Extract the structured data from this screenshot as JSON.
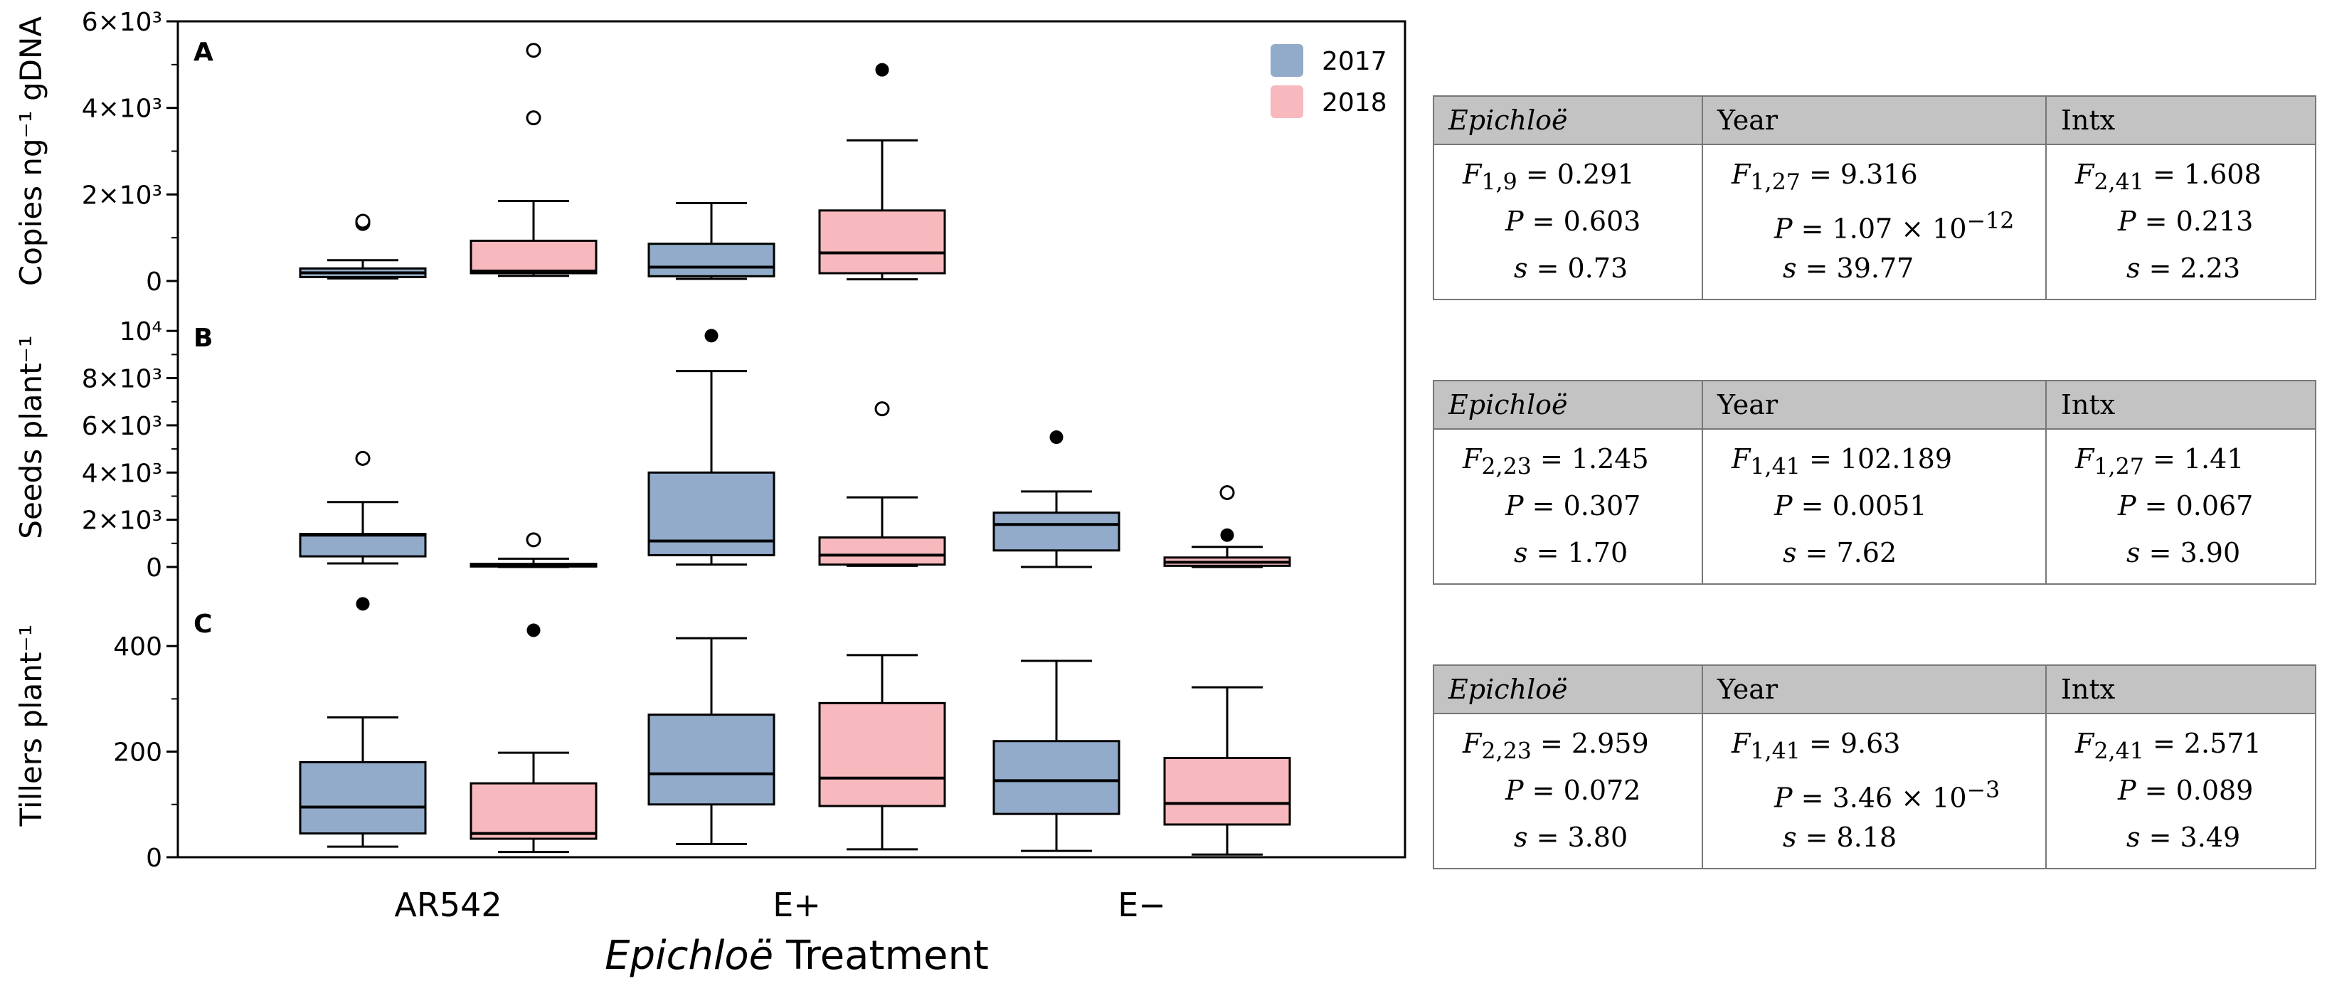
{
  "chart_data": {
    "type": "boxplot",
    "xlabel_italic": "Epichloë",
    "xlabel_rest": " Treatment",
    "categories": [
      "AR542",
      "E+",
      "E−"
    ],
    "legend": [
      {
        "name": "2017",
        "color": "#93abca"
      },
      {
        "name": "2018",
        "color": "#f7b9bd"
      }
    ],
    "panels": [
      {
        "letter": "A",
        "ylabel": "Copies ng⁻¹ gDNA",
        "ylim": [
          0,
          6000
        ],
        "ticks": [
          {
            "v": 0,
            "l": "0"
          },
          {
            "v": 2000,
            "l": "2×10³"
          },
          {
            "v": 4000,
            "l": "4×10³"
          },
          {
            "v": 6000,
            "l": "6×10³"
          }
        ],
        "boxes": [
          {
            "category": "AR542",
            "year": "2017",
            "whisker_low": 60,
            "q1": 90,
            "median": 190,
            "q3": 290,
            "whisker_high": 480,
            "outliers": [
              {
                "v": 1330,
                "filled": false
              },
              {
                "v": 1380,
                "filled": false
              }
            ]
          },
          {
            "category": "AR542",
            "year": "2018",
            "whisker_low": 120,
            "q1": 180,
            "median": 230,
            "q3": 930,
            "whisker_high": 1850,
            "outliers": [
              {
                "v": 3770,
                "filled": false
              },
              {
                "v": 5330,
                "filled": false
              }
            ]
          },
          {
            "category": "E+",
            "year": "2017",
            "whisker_low": 50,
            "q1": 110,
            "median": 320,
            "q3": 860,
            "whisker_high": 1800,
            "outliers": []
          },
          {
            "category": "E+",
            "year": "2018",
            "whisker_low": 40,
            "q1": 180,
            "median": 650,
            "q3": 1630,
            "whisker_high": 3250,
            "outliers": [
              {
                "v": 4880,
                "filled": true
              }
            ]
          }
        ]
      },
      {
        "letter": "B",
        "ylabel": "Seeds plant⁻¹",
        "ylim": [
          0,
          11000
        ],
        "ticks": [
          {
            "v": 0,
            "l": "0"
          },
          {
            "v": 2000,
            "l": "2×10³"
          },
          {
            "v": 4000,
            "l": "4×10³"
          },
          {
            "v": 6000,
            "l": "6×10³"
          },
          {
            "v": 8000,
            "l": "8×10³"
          },
          {
            "v": 10000,
            "l": "10⁴"
          }
        ],
        "boxes": [
          {
            "category": "AR542",
            "year": "2017",
            "whisker_low": 150,
            "q1": 450,
            "median": 1350,
            "q3": 1400,
            "whisker_high": 2750,
            "outliers": [
              {
                "v": 4600,
                "filled": false
              }
            ]
          },
          {
            "category": "AR542",
            "year": "2018",
            "whisker_low": 0,
            "q1": 20,
            "median": 80,
            "q3": 130,
            "whisker_high": 350,
            "outliers": [
              {
                "v": 1150,
                "filled": false
              }
            ]
          },
          {
            "category": "E+",
            "year": "2017",
            "whisker_low": 100,
            "q1": 500,
            "median": 1100,
            "q3": 4000,
            "whisker_high": 8300,
            "outliers": [
              {
                "v": 9800,
                "filled": true
              }
            ]
          },
          {
            "category": "E+",
            "year": "2018",
            "whisker_low": 50,
            "q1": 100,
            "median": 500,
            "q3": 1250,
            "whisker_high": 2950,
            "outliers": [
              {
                "v": 6700,
                "filled": false
              }
            ]
          },
          {
            "category": "E−",
            "year": "2017",
            "whisker_low": 0,
            "q1": 700,
            "median": 1800,
            "q3": 2300,
            "whisker_high": 3200,
            "outliers": [
              {
                "v": 5500,
                "filled": true
              }
            ]
          },
          {
            "category": "E−",
            "year": "2018",
            "whisker_low": 0,
            "q1": 50,
            "median": 200,
            "q3": 400,
            "whisker_high": 850,
            "outliers": [
              {
                "v": 1350,
                "filled": true
              },
              {
                "v": 3150,
                "filled": false
              }
            ]
          }
        ]
      },
      {
        "letter": "C",
        "ylabel": "Tillers plant⁻¹",
        "ylim": [
          0,
          500
        ],
        "ticks": [
          {
            "v": 0,
            "l": "0"
          },
          {
            "v": 200,
            "l": "200"
          },
          {
            "v": 400,
            "l": "400"
          }
        ],
        "boxes": [
          {
            "category": "AR542",
            "year": "2017",
            "whisker_low": 20,
            "q1": 45,
            "median": 95,
            "q3": 180,
            "whisker_high": 265,
            "outliers": [
              {
                "v": 480,
                "filled": true
              }
            ]
          },
          {
            "category": "AR542",
            "year": "2018",
            "whisker_low": 10,
            "q1": 35,
            "median": 45,
            "q3": 140,
            "whisker_high": 198,
            "outliers": [
              {
                "v": 430,
                "filled": true
              }
            ]
          },
          {
            "category": "E+",
            "year": "2017",
            "whisker_low": 25,
            "q1": 100,
            "median": 158,
            "q3": 270,
            "whisker_high": 415,
            "outliers": []
          },
          {
            "category": "E+",
            "year": "2018",
            "whisker_low": 15,
            "q1": 97,
            "median": 150,
            "q3": 292,
            "whisker_high": 383,
            "outliers": []
          },
          {
            "category": "E−",
            "year": "2017",
            "whisker_low": 12,
            "q1": 82,
            "median": 145,
            "q3": 220,
            "whisker_high": 372,
            "outliers": []
          },
          {
            "category": "E−",
            "year": "2018",
            "whisker_low": 5,
            "q1": 62,
            "median": 102,
            "q3": 188,
            "whisker_high": 322,
            "outliers": []
          }
        ]
      }
    ]
  },
  "tables": [
    {
      "headers": {
        "epichloe": "Epichloë",
        "year": "Year",
        "intx": "Intx"
      },
      "epichloe": {
        "F": "F",
        "sub": "1,9",
        "F_val": " = 0.291",
        "P": "P",
        "P_val": " = 0.603",
        "s": "s",
        "s_val": " = 0.73"
      },
      "year": {
        "F": "F",
        "sub": "1,27",
        "F_val": " = 9.316",
        "P": "P",
        "P_val": " = 1.07 × 10",
        "P_exp": "−12",
        "s": "s",
        "s_val": " = 39.77"
      },
      "intx": {
        "F": "F",
        "sub": "2,41",
        "F_val": " = 1.608",
        "P": "P",
        "P_val": " = 0.213",
        "s": "s",
        "s_val": " = 2.23"
      }
    },
    {
      "headers": {
        "epichloe": "Epichloë",
        "year": "Year",
        "intx": "Intx"
      },
      "epichloe": {
        "F": "F",
        "sub": "2,23",
        "F_val": " = 1.245",
        "P": "P",
        "P_val": " = 0.307",
        "s": "s",
        "s_val": " = 1.70"
      },
      "year": {
        "F": "F",
        "sub": "1,41",
        "F_val": " = 102.189",
        "P": "P",
        "P_val": " = 0.0051",
        "P_exp": "",
        "s": "s",
        "s_val": " = 7.62"
      },
      "intx": {
        "F": "F",
        "sub": "1,27",
        "F_val": " = 1.41",
        "P": "P",
        "P_val": " = 0.067",
        "s": "s",
        "s_val": " = 3.90"
      }
    },
    {
      "headers": {
        "epichloe": "Epichloë",
        "year": "Year",
        "intx": "Intx"
      },
      "epichloe": {
        "F": "F",
        "sub": "2,23",
        "F_val": " = 2.959",
        "P": "P",
        "P_val": " = 0.072",
        "s": "s",
        "s_val": " = 3.80"
      },
      "year": {
        "F": "F",
        "sub": "1,41",
        "F_val": " = 9.63",
        "P": "P",
        "P_val": " = 3.46 × 10",
        "P_exp": "−3",
        "s": "s",
        "s_val": " = 8.18"
      },
      "intx": {
        "F": "F",
        "sub": "2,41",
        "F_val": " = 2.571",
        "P": "P",
        "P_val": " = 0.089",
        "s": "s",
        "s_val": " = 3.49"
      }
    }
  ]
}
